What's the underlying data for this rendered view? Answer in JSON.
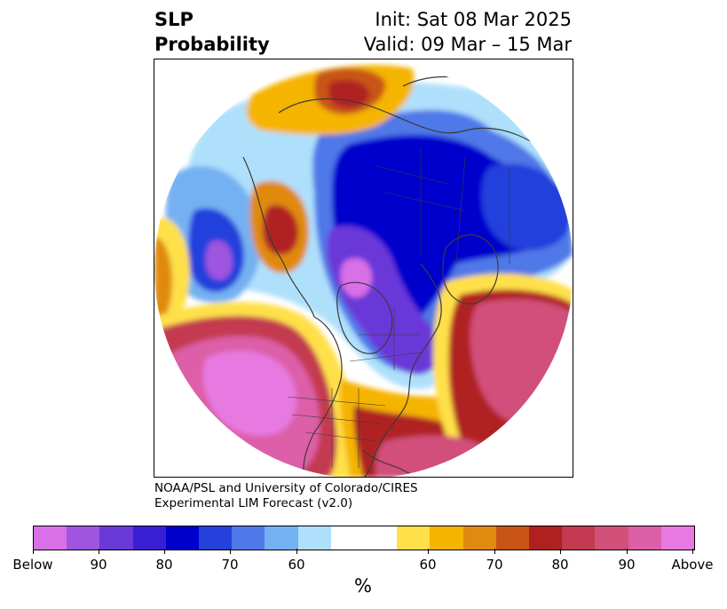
{
  "title": {
    "left_line1": "SLP",
    "left_line2": "Probability",
    "right_line1": "Init: Sat 08 Mar 2025",
    "right_line2": "Valid: 09 Mar – 15 Mar"
  },
  "credit": {
    "line1": "NOAA/PSL and University of Colorado/CIRES",
    "line2": "Experimental LIM Forecast (v2.0)"
  },
  "colorbar": {
    "colors": [
      "#d970e8",
      "#9f55e0",
      "#6a39d8",
      "#3a1ed6",
      "#0000cd",
      "#2441dc",
      "#4f78e8",
      "#74b1f2",
      "#aee0fc",
      "#ffffff",
      "#ffe04a",
      "#f5b400",
      "#e08a10",
      "#c85418",
      "#b02020",
      "#c43a50",
      "#d1507a",
      "#dc5fa8",
      "#e67ae0"
    ],
    "tick_labels": [
      "Below",
      "90",
      "80",
      "70",
      "60",
      "60",
      "70",
      "80",
      "90",
      "Above"
    ],
    "unit": "%"
  },
  "map": {
    "projection": "north-polar-stereographic",
    "variable": "sea-level-pressure-probability",
    "below_normal_regions": [
      "arctic",
      "hudson-bay",
      "north-pacific-west",
      "siberia"
    ],
    "above_normal_regions": [
      "north-pacific-east",
      "north-atlantic",
      "alaska",
      "eastern-europe"
    ]
  }
}
